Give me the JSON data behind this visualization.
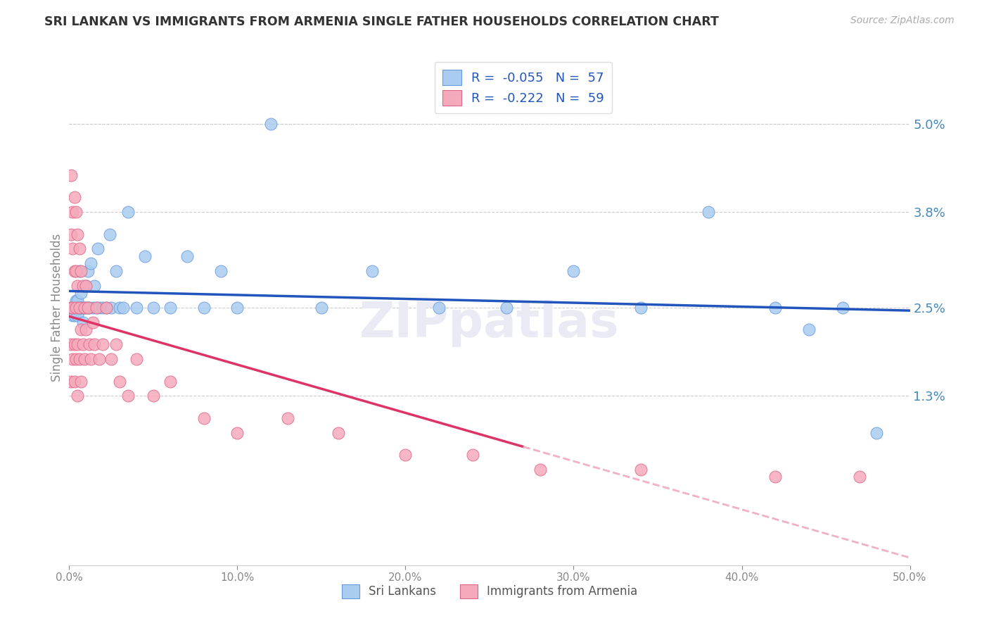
{
  "title": "SRI LANKAN VS IMMIGRANTS FROM ARMENIA SINGLE FATHER HOUSEHOLDS CORRELATION CHART",
  "source": "Source: ZipAtlas.com",
  "ylabel": "Single Father Households",
  "ytick_vals": [
    0.013,
    0.025,
    0.038,
    0.05
  ],
  "ytick_labels": [
    "1.3%",
    "2.5%",
    "3.8%",
    "5.0%"
  ],
  "xmin": 0.0,
  "xmax": 0.5,
  "ymin": -0.01,
  "ymax": 0.06,
  "label1": "Sri Lankans",
  "label2": "Immigrants from Armenia",
  "legend_r1": "-0.055",
  "legend_n1": "57",
  "legend_r2": "-0.222",
  "legend_n2": "59",
  "color1": "#aaccf0",
  "color2": "#f5aabb",
  "edgecolor1": "#6699dd",
  "edgecolor2": "#dd6688",
  "line_color1": "#2255bb",
  "line_color2": "#dd3366",
  "line_color2_dashed": "#f0b0c8",
  "background": "#ffffff",
  "grid_color": "#cccccc",
  "axis_color": "#888888",
  "right_label_color": "#4488bb",
  "title_color": "#333333",
  "source_color": "#aaaaaa",
  "watermark_color": "#eaeaf5",
  "sri_lankan_x": [
    0.001,
    0.001,
    0.002,
    0.002,
    0.003,
    0.003,
    0.004,
    0.004,
    0.005,
    0.005,
    0.005,
    0.006,
    0.006,
    0.007,
    0.007,
    0.008,
    0.008,
    0.009,
    0.01,
    0.01,
    0.011,
    0.011,
    0.012,
    0.013,
    0.014,
    0.015,
    0.016,
    0.017,
    0.018,
    0.02,
    0.022,
    0.024,
    0.025,
    0.028,
    0.03,
    0.032,
    0.035,
    0.04,
    0.045,
    0.05,
    0.06,
    0.07,
    0.08,
    0.09,
    0.1,
    0.12,
    0.15,
    0.18,
    0.22,
    0.26,
    0.3,
    0.34,
    0.38,
    0.42,
    0.44,
    0.46,
    0.48
  ],
  "sri_lankan_y": [
    0.025,
    0.025,
    0.025,
    0.024,
    0.024,
    0.025,
    0.025,
    0.026,
    0.025,
    0.024,
    0.026,
    0.025,
    0.03,
    0.025,
    0.027,
    0.025,
    0.023,
    0.025,
    0.028,
    0.025,
    0.03,
    0.025,
    0.025,
    0.031,
    0.025,
    0.028,
    0.025,
    0.033,
    0.025,
    0.025,
    0.025,
    0.035,
    0.025,
    0.03,
    0.025,
    0.025,
    0.038,
    0.025,
    0.032,
    0.025,
    0.025,
    0.032,
    0.025,
    0.03,
    0.025,
    0.05,
    0.025,
    0.03,
    0.025,
    0.025,
    0.03,
    0.025,
    0.038,
    0.025,
    0.022,
    0.025,
    0.008
  ],
  "armenia_x": [
    0.001,
    0.001,
    0.001,
    0.001,
    0.001,
    0.002,
    0.002,
    0.002,
    0.002,
    0.003,
    0.003,
    0.003,
    0.003,
    0.004,
    0.004,
    0.004,
    0.004,
    0.005,
    0.005,
    0.005,
    0.005,
    0.006,
    0.006,
    0.006,
    0.007,
    0.007,
    0.007,
    0.008,
    0.008,
    0.009,
    0.009,
    0.01,
    0.01,
    0.011,
    0.012,
    0.013,
    0.014,
    0.015,
    0.016,
    0.018,
    0.02,
    0.022,
    0.025,
    0.028,
    0.03,
    0.035,
    0.04,
    0.05,
    0.06,
    0.08,
    0.1,
    0.13,
    0.16,
    0.2,
    0.24,
    0.28,
    0.34,
    0.42,
    0.47
  ],
  "armenia_y": [
    0.025,
    0.043,
    0.035,
    0.02,
    0.015,
    0.038,
    0.033,
    0.025,
    0.018,
    0.04,
    0.03,
    0.02,
    0.015,
    0.038,
    0.03,
    0.025,
    0.018,
    0.035,
    0.028,
    0.02,
    0.013,
    0.033,
    0.025,
    0.018,
    0.03,
    0.022,
    0.015,
    0.028,
    0.02,
    0.025,
    0.018,
    0.028,
    0.022,
    0.025,
    0.02,
    0.018,
    0.023,
    0.02,
    0.025,
    0.018,
    0.02,
    0.025,
    0.018,
    0.02,
    0.015,
    0.013,
    0.018,
    0.013,
    0.015,
    0.01,
    0.008,
    0.01,
    0.008,
    0.005,
    0.005,
    0.003,
    0.003,
    0.002,
    0.002
  ]
}
